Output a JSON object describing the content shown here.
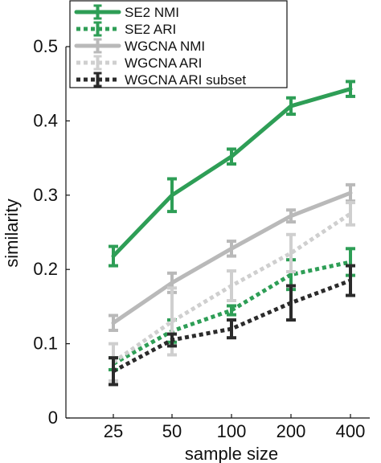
{
  "chart_data": {
    "type": "line",
    "categories": [
      "25",
      "50",
      "100",
      "200",
      "400"
    ],
    "xlabel": "sample size",
    "ylabel": "similarity",
    "ylim": [
      0,
      0.5
    ],
    "yticks": [
      "0",
      "0.1",
      "0.2",
      "0.3",
      "0.4",
      "0.5"
    ],
    "grid": false,
    "legend_position": "top-left",
    "series": [
      {
        "name": "SE2 NMI",
        "color": "#2e9e56",
        "style": "solid",
        "values": [
          0.218,
          0.3,
          0.352,
          0.42,
          0.443
        ],
        "errors": [
          0.013,
          0.022,
          0.01,
          0.011,
          0.01
        ]
      },
      {
        "name": "SE2 ARI",
        "color": "#2e9e56",
        "style": "dotted",
        "values": [
          0.073,
          0.117,
          0.145,
          0.193,
          0.21
        ],
        "errors": [
          0.008,
          0.015,
          0.006,
          0.02,
          0.018
        ]
      },
      {
        "name": "WGCNA NMI",
        "color": "#b9b9b9",
        "style": "solid",
        "values": [
          0.128,
          0.182,
          0.228,
          0.272,
          0.303
        ],
        "errors": [
          0.01,
          0.013,
          0.01,
          0.008,
          0.011
        ]
      },
      {
        "name": "WGCNA ARI",
        "color": "#cfcfcf",
        "style": "dotted",
        "values": [
          0.075,
          0.13,
          0.178,
          0.222,
          0.275
        ],
        "errors": [
          0.025,
          0.045,
          0.02,
          0.025,
          0.015
        ]
      },
      {
        "name": "WGCNA ARI subset",
        "color": "#2b2b2b",
        "style": "dotted",
        "values": [
          0.063,
          0.105,
          0.12,
          0.155,
          0.185
        ],
        "errors": [
          0.018,
          0.008,
          0.012,
          0.023,
          0.02
        ]
      }
    ]
  }
}
